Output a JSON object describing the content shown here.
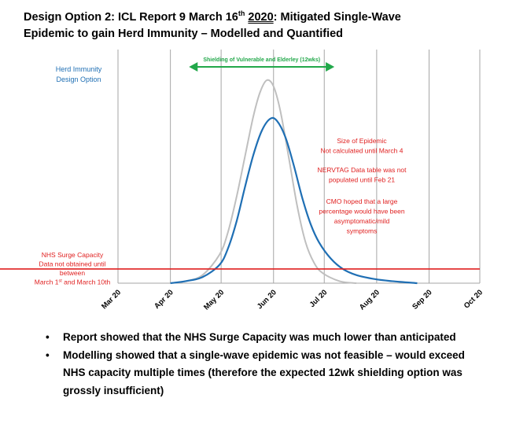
{
  "header": {
    "title_part1": "Design Option 2: ICL Report 9 March 16",
    "title_sup": "th",
    "title_year": "2020",
    "title_part2": ": Mitigated Single-Wave",
    "title_line2": "Epidemic to gain Herd Immunity – Modelled and Quantified"
  },
  "bullets": [
    "Report showed that the NHS Surge Capacity was much lower than anticipated",
    "Modelling showed that a single-wave epidemic was not feasible – would exceed NHS capacity multiple times (therefore the expected 12wk shielding option was grossly insufficient)"
  ],
  "chart_data": {
    "type": "line",
    "x_ticks": [
      "Mar 20",
      "Apr 20",
      "May 20",
      "Jun 20",
      "Jul 20",
      "Aug 20",
      "Sep 20",
      "Oct 20"
    ],
    "xlim": [
      "2020-03-01",
      "2020-10-01"
    ],
    "ylim": [
      0,
      100
    ],
    "grid": "vertical",
    "series": [
      {
        "name": "",
        "color": "#bfbfbf",
        "x": [
          "2020-04-01",
          "2020-04-10",
          "2020-04-20",
          "2020-04-30",
          "2020-05-05",
          "2020-05-10",
          "2020-05-15",
          "2020-05-20",
          "2020-05-24",
          "2020-05-28",
          "2020-06-01",
          "2020-06-05",
          "2020-06-10",
          "2020-06-15",
          "2020-06-20",
          "2020-06-25",
          "2020-06-30",
          "2020-07-10",
          "2020-07-20"
        ],
        "values": [
          0,
          1,
          4,
          14,
          25,
          42,
          62,
          82,
          94,
          100,
          97,
          85,
          62,
          38,
          20,
          10,
          5,
          1,
          0
        ]
      },
      {
        "name": "",
        "color": "#1f6fb4",
        "x": [
          "2020-04-01",
          "2020-04-10",
          "2020-04-20",
          "2020-04-30",
          "2020-05-05",
          "2020-05-10",
          "2020-05-15",
          "2020-05-20",
          "2020-05-25",
          "2020-05-30",
          "2020-06-03",
          "2020-06-08",
          "2020-06-13",
          "2020-06-18",
          "2020-06-23",
          "2020-06-28",
          "2020-07-05",
          "2020-07-12",
          "2020-07-20",
          "2020-07-31",
          "2020-08-10",
          "2020-08-25"
        ],
        "values": [
          0,
          1,
          3,
          9,
          17,
          30,
          47,
          63,
          75,
          81,
          80,
          72,
          58,
          42,
          29,
          20,
          12,
          7,
          4,
          2,
          1,
          0
        ]
      }
    ],
    "hline": {
      "value": 7,
      "color": "#e02020"
    },
    "arrow": {
      "label": "Shielding of Vulnerable and Elderley (12wks)",
      "from": "2020-04-12",
      "to": "2020-07-07",
      "color": "#22a84a"
    },
    "legend_label": [
      "Herd Immunity",
      "Design Option"
    ],
    "annotations": [
      [
        "Size of Epidemic",
        "Not calculated until March 4"
      ],
      [
        "NERVTAG Data table was not",
        "populated until Feb 21"
      ],
      [
        "CMO hoped that a large",
        "percentage would have been",
        "asymptomatic/mild",
        "symptoms"
      ]
    ],
    "surge_label_lines": [
      "NHS Surge Capacity",
      "Data not obtained until",
      "between"
    ],
    "surge_label_last": {
      "a": "March 1",
      "a_sup": "st",
      "b": " and March 10th"
    }
  },
  "colors": {
    "annotation": "#e02020",
    "legend": "#1f6fb4"
  }
}
